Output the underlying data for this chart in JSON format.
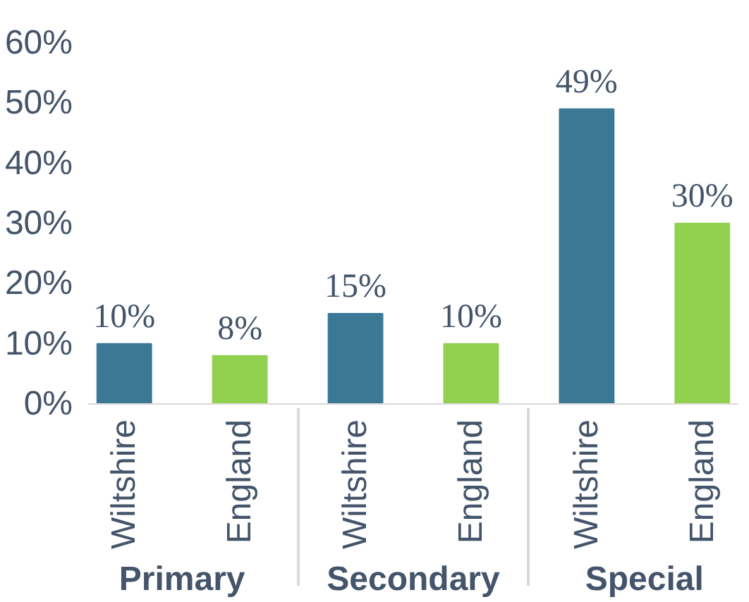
{
  "chart_data": {
    "type": "bar",
    "categories": [
      "Primary",
      "Secondary",
      "Special"
    ],
    "series": [
      {
        "name": "Wiltshire",
        "color": "#3a7896",
        "values": [
          10,
          15,
          49
        ],
        "value_labels": [
          "10%",
          "15%",
          "49%"
        ]
      },
      {
        "name": "England",
        "color": "#92d050",
        "values": [
          8,
          10,
          30
        ],
        "value_labels": [
          "8%",
          "10%",
          "30%"
        ]
      }
    ],
    "ylim": [
      0,
      60
    ],
    "yticks": [
      {
        "value": 0,
        "label": "0%"
      },
      {
        "value": 10,
        "label": "10%"
      },
      {
        "value": 20,
        "label": "20%"
      },
      {
        "value": 30,
        "label": "30%"
      },
      {
        "value": 40,
        "label": "40%"
      },
      {
        "value": 50,
        "label": "50%"
      },
      {
        "value": 60,
        "label": "60%"
      }
    ],
    "grid": false,
    "legend": false
  }
}
